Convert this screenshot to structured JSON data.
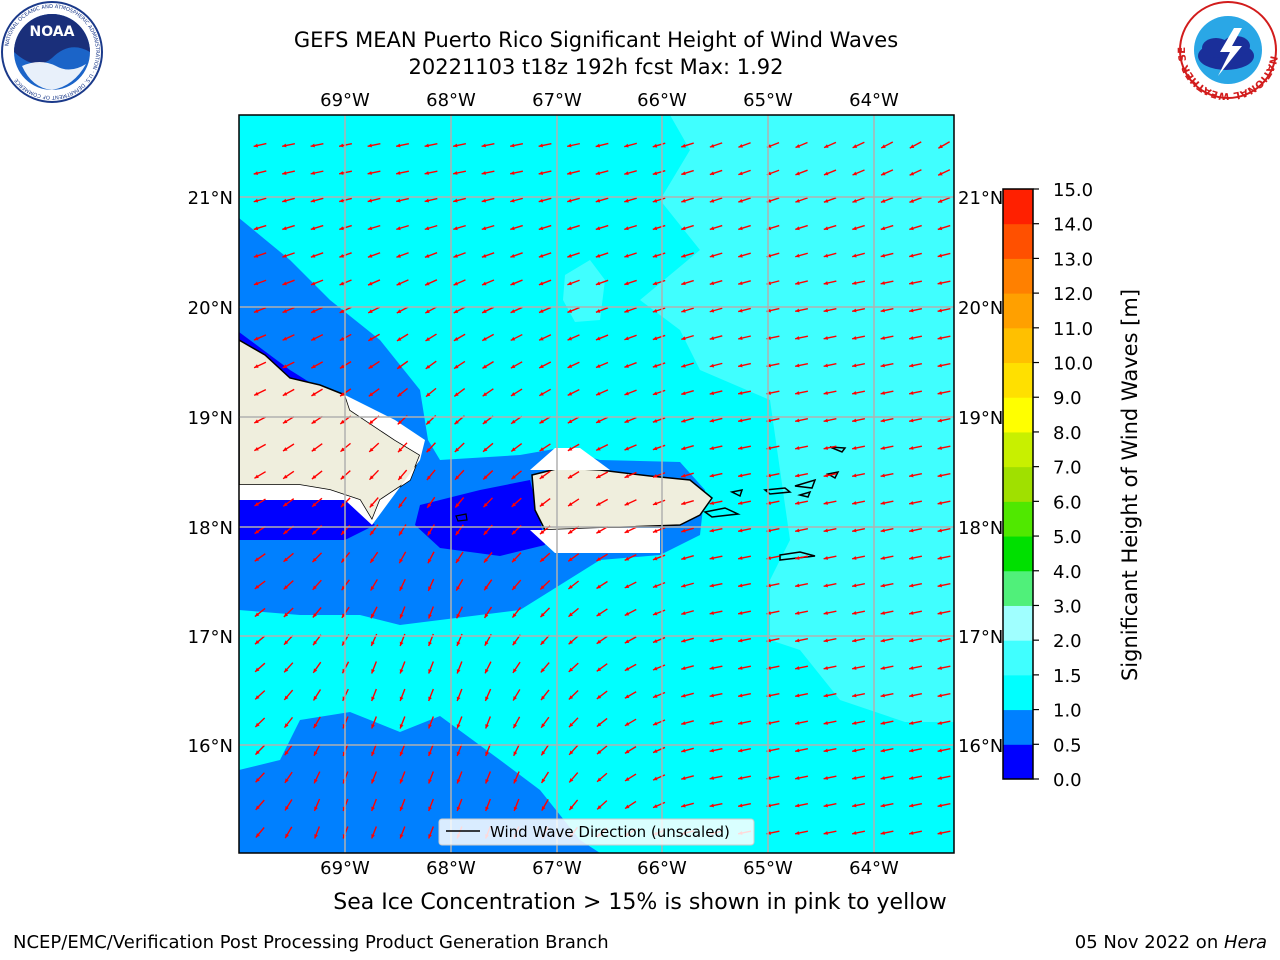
{
  "header": {
    "title_line1": "GEFS MEAN Puerto Rico Significant Height of Wind Waves",
    "title_line2": "20221103 t18z 192h fcst   Max: 1.92"
  },
  "logos": {
    "noaa_text": "NOAA",
    "noaa_ring": "NATIONAL OCEANIC AND ATMOSPHERIC ADMINISTRATION · U.S. DEPARTMENT OF COMMERCE",
    "nws_ring": "NATIONAL WEATHER SERVICE"
  },
  "map": {
    "lon_ticks": [
      "69°W",
      "68°W",
      "67°W",
      "66°W",
      "65°W",
      "64°W"
    ],
    "lat_ticks": [
      "21°N",
      "20°N",
      "19°N",
      "18°N",
      "17°N",
      "16°N"
    ],
    "legend_label": "Wind Wave Direction (unscaled)",
    "colors": {
      "land": "#efeedd",
      "arrow": "#ff0000",
      "grid": "#b0b0b0",
      "wave_0_0.5": "#0000ff",
      "wave_0.5_1.0": "#0080ff",
      "wave_1.0_1.5": "#00ffff",
      "wave_1.5_2.0": "#40ffff",
      "wave_2.0_3.0": "#a0ffff"
    },
    "wave_direction": "toward southwest"
  },
  "colorbar": {
    "label": "Significant Height of Wind Waves [m]",
    "ticks": [
      "15.0",
      "14.0",
      "13.0",
      "12.0",
      "11.0",
      "10.0",
      "9.0",
      "8.0",
      "7.0",
      "6.0",
      "5.0",
      "4.0",
      "3.0",
      "2.0",
      "1.5",
      "1.0",
      "0.5",
      "0.0"
    ],
    "colors": [
      "#0000ff",
      "#0080ff",
      "#00ffff",
      "#40ffff",
      "#a0ffff",
      "#50f07a",
      "#00d800",
      "#00f000",
      "#50f000",
      "#a0e000",
      "#c8f000",
      "#e0f000",
      "#ffff00",
      "#ffd800",
      "#ffb000",
      "#ff8800",
      "#ff6000",
      "#ff3800",
      "#ff0000"
    ]
  },
  "subtitle": "Sea Ice Concentration > 15% is shown in pink to yellow",
  "footer": {
    "left": "NCEP/EMC/Verification Post Processing Product Generation Branch",
    "right_prefix": "05 Nov 2022 on ",
    "right_host": "Hera"
  }
}
